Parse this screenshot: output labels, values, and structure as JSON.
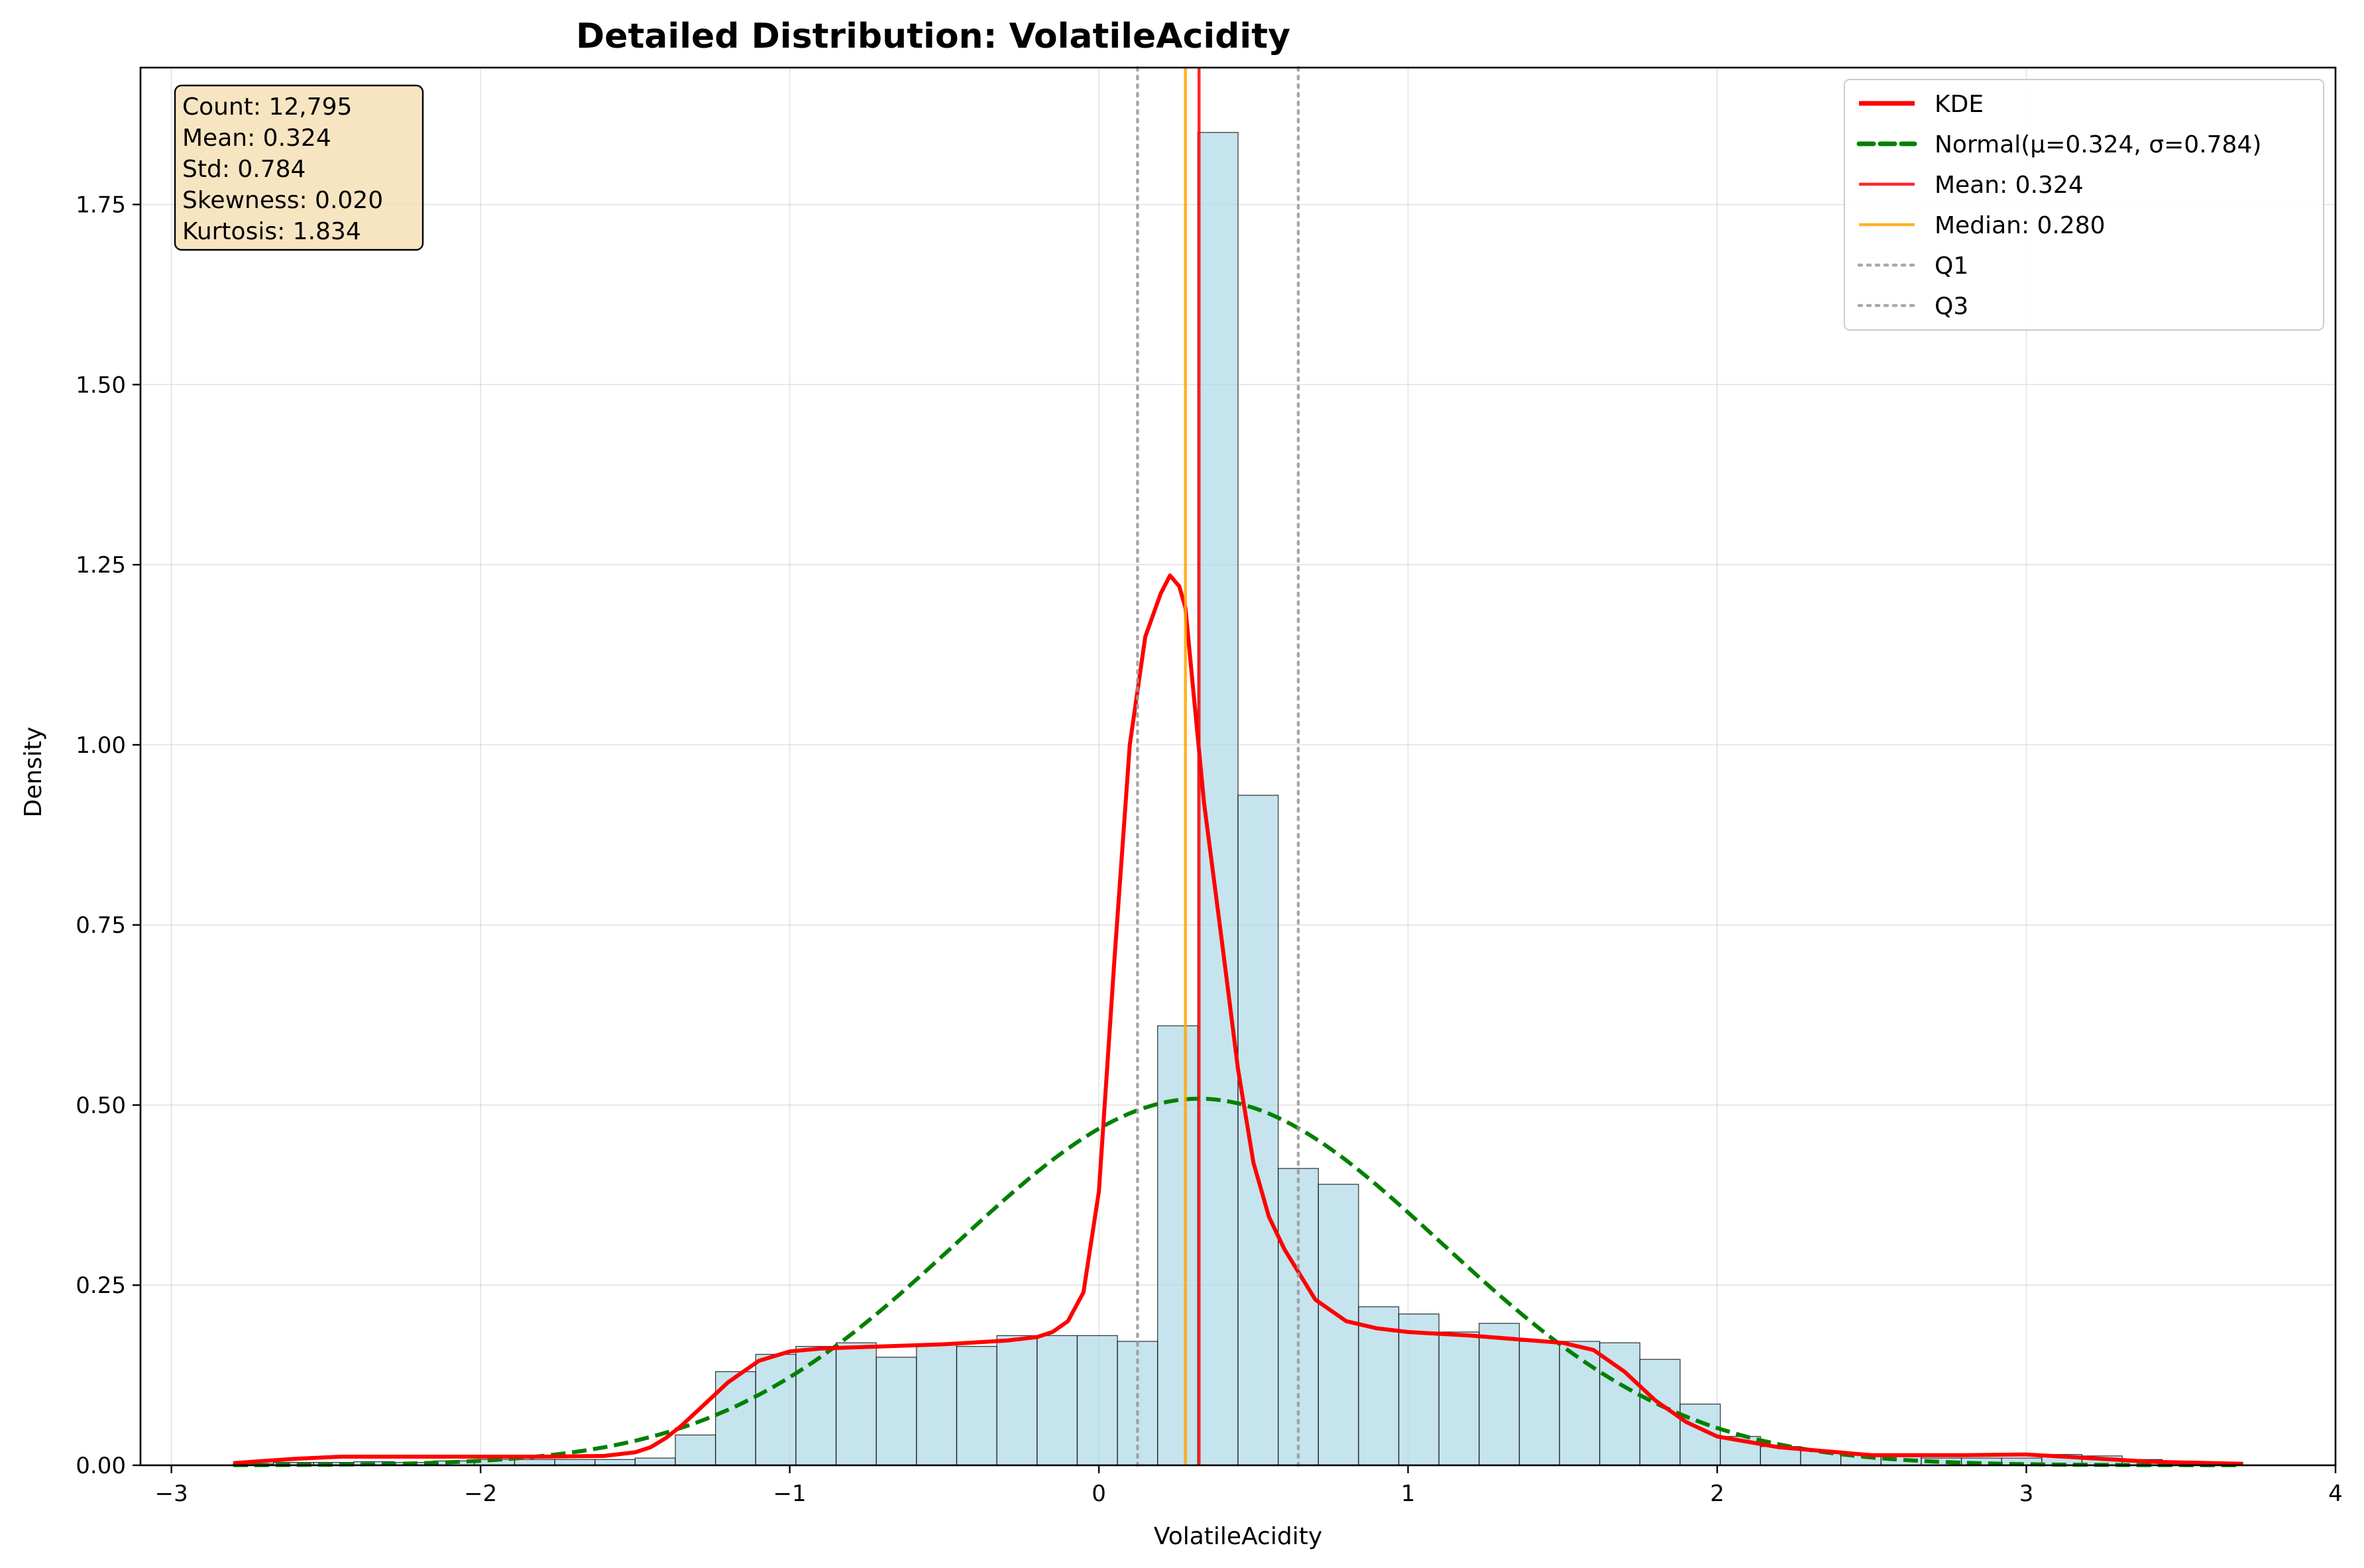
{
  "chart_data": {
    "type": "histogram",
    "title": "Detailed Distribution: VolatileAcidity",
    "xlabel": "VolatileAcidity",
    "ylabel": "Density",
    "xlim": [
      -3.1,
      4.0
    ],
    "ylim": [
      0,
      1.94
    ],
    "grid": true,
    "legend_position": "top-right",
    "x_ticks": [
      -3,
      -2,
      -1,
      0,
      1,
      2,
      3,
      4
    ],
    "x_tick_labels": [
      "−3",
      "−2",
      "−1",
      "0",
      "1",
      "2",
      "3",
      "4"
    ],
    "y_ticks": [
      0,
      0.25,
      0.5,
      0.75,
      1.0,
      1.25,
      1.5,
      1.75
    ],
    "y_tick_labels": [
      "0.00",
      "0.25",
      "0.50",
      "0.75",
      "1.00",
      "1.25",
      "1.50",
      "1.75"
    ],
    "histogram": {
      "bin_start": -2.8,
      "bin_width": 0.13,
      "densities": [
        0.002,
        0.004,
        0.004,
        0.005,
        0.004,
        0.006,
        0.008,
        0.008,
        0.008,
        0.008,
        0.01,
        0.042,
        0.13,
        0.154,
        0.165,
        0.17,
        0.15,
        0.168,
        0.165,
        0.18,
        0.18,
        0.18,
        0.172,
        0.61,
        1.85,
        0.93,
        0.412,
        0.39,
        0.22,
        0.21,
        0.185,
        0.197,
        0.172,
        0.172,
        0.17,
        0.147,
        0.085,
        0.04,
        0.026,
        0.02,
        0.015,
        0.012,
        0.01,
        0.01,
        0.01,
        0.015,
        0.013,
        0.008,
        0.004,
        0.004
      ],
      "fill_color": "#add8e6",
      "edge_color": "#000000"
    },
    "kde": {
      "name": "KDE",
      "color": "#ff0000",
      "x": [
        -2.8,
        -2.6,
        -2.45,
        -2.2,
        -2.0,
        -1.8,
        -1.6,
        -1.5,
        -1.45,
        -1.4,
        -1.35,
        -1.3,
        -1.2,
        -1.1,
        -1.0,
        -0.9,
        -0.7,
        -0.5,
        -0.3,
        -0.2,
        -0.15,
        -0.1,
        -0.05,
        0.0,
        0.05,
        0.1,
        0.15,
        0.2,
        0.23,
        0.26,
        0.28,
        0.3,
        0.34,
        0.4,
        0.45,
        0.5,
        0.55,
        0.6,
        0.7,
        0.8,
        0.9,
        1.0,
        1.2,
        1.5,
        1.6,
        1.7,
        1.8,
        1.9,
        2.0,
        2.2,
        2.5,
        2.8,
        3.0,
        3.2,
        3.4,
        3.7
      ],
      "y": [
        0.003,
        0.009,
        0.012,
        0.012,
        0.012,
        0.012,
        0.013,
        0.018,
        0.025,
        0.038,
        0.055,
        0.075,
        0.115,
        0.145,
        0.158,
        0.162,
        0.165,
        0.168,
        0.173,
        0.178,
        0.185,
        0.2,
        0.24,
        0.38,
        0.7,
        1.0,
        1.15,
        1.21,
        1.235,
        1.22,
        1.19,
        1.1,
        0.92,
        0.72,
        0.55,
        0.42,
        0.345,
        0.3,
        0.23,
        0.2,
        0.19,
        0.185,
        0.18,
        0.17,
        0.16,
        0.13,
        0.09,
        0.06,
        0.04,
        0.025,
        0.014,
        0.014,
        0.015,
        0.01,
        0.005,
        0.002
      ]
    },
    "normal_fit": {
      "name": "Normal(μ=0.324, σ=0.784)",
      "mu": 0.324,
      "sigma": 0.784,
      "x_range": [
        -2.8,
        3.7
      ],
      "color": "#008000"
    },
    "vlines": [
      {
        "name": "Mean: 0.324",
        "x": 0.324,
        "color": "#ff0000",
        "style": "solid"
      },
      {
        "name": "Median: 0.280",
        "x": 0.28,
        "color": "#ffa500",
        "style": "solid"
      },
      {
        "name": "Q1",
        "x": 0.125,
        "color": "#999999",
        "style": "dotted"
      },
      {
        "name": "Q3",
        "x": 0.645,
        "color": "#999999",
        "style": "dotted"
      }
    ],
    "legend": [
      "KDE",
      "Normal(μ=0.324, σ=0.784)",
      "Mean: 0.324",
      "Median: 0.280",
      "Q1",
      "Q3"
    ],
    "stats_box": [
      "Count: 12,795",
      "Mean: 0.324",
      "Std: 0.784",
      "Skewness: 0.020",
      "Kurtosis: 1.834"
    ],
    "stats_box_color": "#f5deb3"
  }
}
